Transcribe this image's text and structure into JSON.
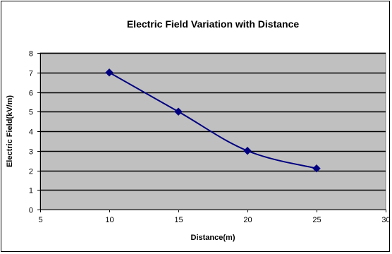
{
  "chart_data": {
    "type": "line",
    "title": "Electric Field Variation with Distance",
    "xlabel": "Distance(m)",
    "ylabel": "Electric Field(kV/m)",
    "xlim": [
      5,
      30
    ],
    "ylim": [
      0,
      8
    ],
    "xticks": [
      5,
      10,
      15,
      20,
      25,
      30
    ],
    "yticks": [
      0,
      1,
      2,
      3,
      4,
      5,
      6,
      7,
      8
    ],
    "grid": "horizontal",
    "legend": "none",
    "smooth": true,
    "series": [
      {
        "x": [
          10,
          15,
          20,
          25
        ],
        "y": [
          7,
          5,
          3,
          2.1
        ]
      }
    ],
    "colors": {
      "plot_background": "#C0C0C0",
      "line": "#000080",
      "gridline": "#000000"
    }
  }
}
